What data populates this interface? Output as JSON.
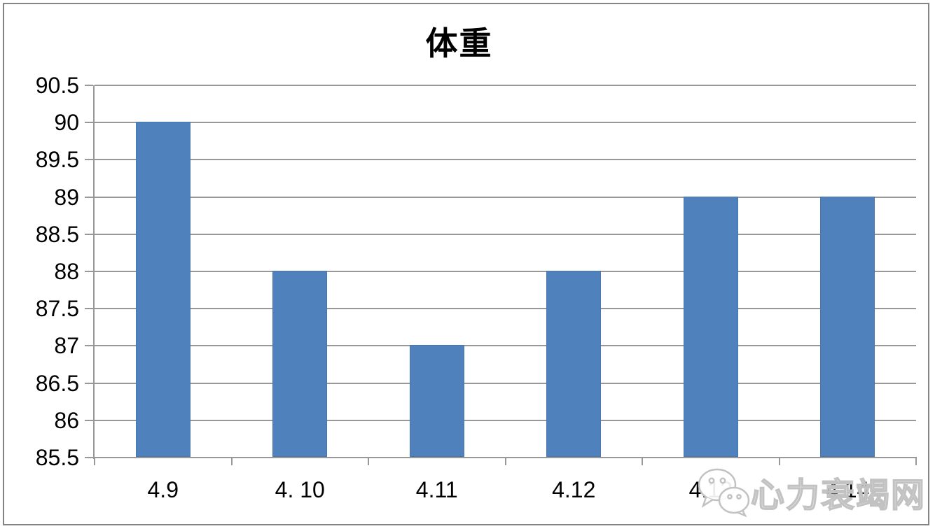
{
  "chart": {
    "watermark": {
      "text": "心力衰竭网",
      "icon": "wechat-chat-bubbles-icon",
      "color": "#c2c2c2"
    }
  },
  "chart_data": {
    "type": "bar",
    "title": "体重",
    "categories": [
      "4.9",
      "4. 10",
      "4.11",
      "4.12",
      "4.13",
      "4.14"
    ],
    "values": [
      90,
      88,
      87,
      88,
      89,
      89
    ],
    "xlabel": "",
    "ylabel": "",
    "ylim": [
      85.5,
      90.5
    ],
    "ytick_step": 0.5,
    "ytick_labels": [
      "85.5",
      "86",
      "86.5",
      "87",
      "87.5",
      "88",
      "88.5",
      "89",
      "89.5",
      "90",
      "90.5"
    ],
    "grid": true,
    "legend": false,
    "bar_color": "#4F81BD",
    "gridline_color": "#989898",
    "axis_color": "#989898",
    "text_color": "#000000",
    "background_color": "#ffffff",
    "border_color": "#848484"
  }
}
